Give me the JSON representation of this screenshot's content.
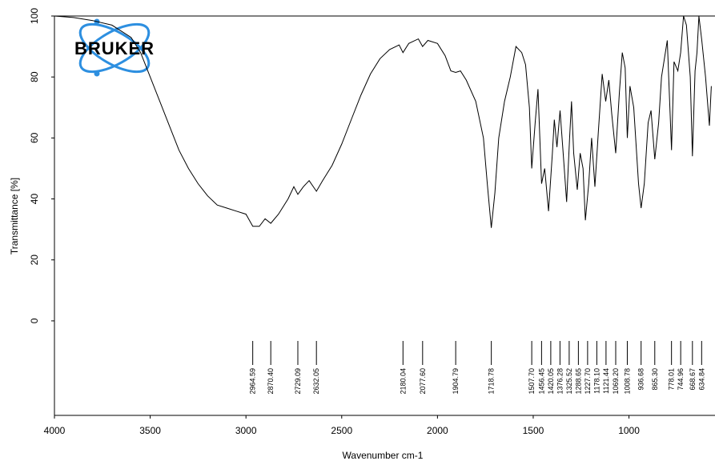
{
  "chart_data": {
    "type": "line",
    "logo": "BRUKER",
    "ylabel": "Transmittance [%]",
    "xlabel": "Wavenumber cm-1",
    "color": "#000000",
    "xlim": [
      4000,
      555
    ],
    "ylim": [
      -31,
      100
    ],
    "xticks": [
      4000,
      3500,
      3000,
      2500,
      2000,
      1500,
      1000
    ],
    "yticks": [
      0,
      20,
      40,
      60,
      80,
      100
    ],
    "x": [
      4000,
      3900,
      3800,
      3700,
      3600,
      3550,
      3500,
      3450,
      3400,
      3350,
      3300,
      3250,
      3200,
      3150,
      3100,
      3050,
      3000,
      2964.59,
      2930,
      2900,
      2870.4,
      2830,
      2780,
      2750,
      2729.09,
      2700,
      2670,
      2632.05,
      2600,
      2550,
      2500,
      2450,
      2400,
      2350,
      2300,
      2250,
      2200,
      2180.04,
      2150,
      2100,
      2077.6,
      2050,
      2000,
      1960,
      1930,
      1904.79,
      1880,
      1850,
      1800,
      1760,
      1740,
      1718.78,
      1700,
      1680,
      1650,
      1620,
      1590,
      1560,
      1540,
      1520,
      1507.7,
      1490,
      1475,
      1456.45,
      1440,
      1420.05,
      1400,
      1390,
      1376.28,
      1360,
      1340,
      1325.52,
      1310,
      1300,
      1288.65,
      1270,
      1255,
      1240,
      1227.7,
      1210,
      1195,
      1178.1,
      1160,
      1140,
      1121.44,
      1105,
      1090,
      1069.2,
      1050,
      1035,
      1020,
      1008.78,
      995,
      975,
      950,
      936.68,
      920,
      900,
      885,
      865.3,
      845,
      830,
      800,
      778.01,
      765,
      744.96,
      730,
      715,
      700,
      680,
      668.67,
      655,
      645,
      634.84,
      620,
      600,
      580,
      570
    ],
    "values": [
      100,
      99.5,
      98.5,
      97,
      93,
      88,
      80,
      72,
      64,
      56,
      50,
      45,
      41,
      38,
      37,
      36,
      35,
      31,
      31,
      33.5,
      32,
      35,
      40,
      44,
      41.5,
      44,
      46,
      42.5,
      46,
      51,
      58,
      66,
      74,
      81,
      86,
      89,
      90.5,
      88,
      91,
      92.5,
      90,
      92,
      91,
      87,
      82,
      81.5,
      82,
      79,
      72,
      60,
      45,
      30.5,
      42,
      60,
      72,
      80,
      90,
      88,
      84,
      70,
      50,
      65,
      76,
      45,
      50,
      36,
      55,
      66,
      57,
      69,
      52,
      39,
      60,
      72,
      55,
      43,
      55,
      50,
      33,
      45,
      60,
      44,
      62,
      81,
      72,
      79,
      68,
      55,
      75,
      88,
      83,
      60,
      77,
      70,
      45,
      37,
      45,
      65,
      69,
      53,
      65,
      80,
      92,
      56,
      85,
      82,
      88,
      100,
      97,
      80,
      54,
      82,
      88,
      100,
      92,
      80,
      64,
      77
    ],
    "peaks": [
      {
        "value": 2964.59,
        "label": "2964.59"
      },
      {
        "value": 2870.4,
        "label": "2870.40"
      },
      {
        "value": 2729.09,
        "label": "2729.09"
      },
      {
        "value": 2632.05,
        "label": "2632.05"
      },
      {
        "value": 2180.04,
        "label": "2180.04"
      },
      {
        "value": 2077.6,
        "label": "2077.60"
      },
      {
        "value": 1904.79,
        "label": "1904.79"
      },
      {
        "value": 1718.78,
        "label": "1718.78"
      },
      {
        "value": 1507.7,
        "label": "1507.70"
      },
      {
        "value": 1456.45,
        "label": "1456.45"
      },
      {
        "value": 1420.05,
        "label": "1420.05"
      },
      {
        "value": 1376.28,
        "label": "1376.28"
      },
      {
        "value": 1325.52,
        "label": "1325.52"
      },
      {
        "value": 1288.65,
        "label": "1288.65"
      },
      {
        "value": 1227.7,
        "label": "1227.70"
      },
      {
        "value": 1178.1,
        "label": "1178.10"
      },
      {
        "value": 1121.44,
        "label": "1121.44"
      },
      {
        "value": 1069.2,
        "label": "1069.20"
      },
      {
        "value": 1008.78,
        "label": "1008.78"
      },
      {
        "value": 936.68,
        "label": "936.68"
      },
      {
        "value": 865.3,
        "label": "865.30"
      },
      {
        "value": 778.01,
        "label": "778.01"
      },
      {
        "value": 744.96,
        "label": "744.96"
      },
      {
        "value": 668.67,
        "label": "668.67"
      },
      {
        "value": 634.84,
        "label": "634.84"
      }
    ]
  }
}
